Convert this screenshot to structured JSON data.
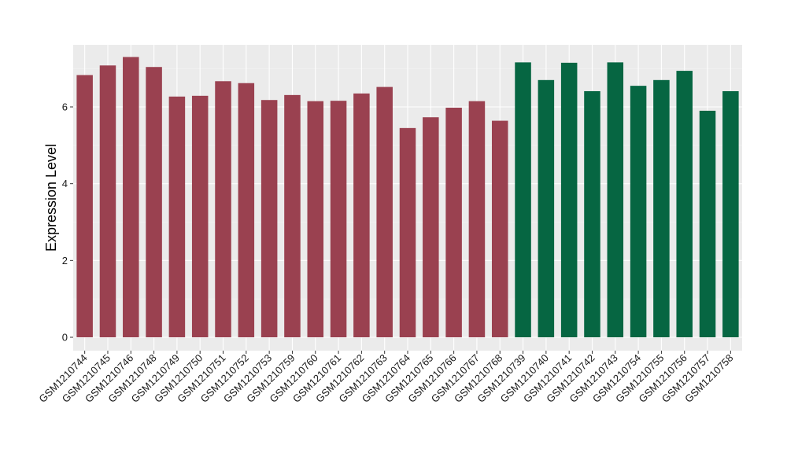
{
  "chart_data": {
    "type": "bar",
    "title": "",
    "xlabel": "",
    "ylabel": "Expression Level",
    "ylim": [
      0,
      7.6
    ],
    "yticks": [
      0,
      2,
      4,
      6
    ],
    "grid": true,
    "legend": "none",
    "categories": [
      "GSM1210744",
      "GSM1210745",
      "GSM1210746",
      "GSM1210748",
      "GSM1210749",
      "GSM1210750",
      "GSM1210751",
      "GSM1210752",
      "GSM1210753",
      "GSM1210759",
      "GSM1210760",
      "GSM1210761",
      "GSM1210762",
      "GSM1210763",
      "GSM1210764",
      "GSM1210765",
      "GSM1210766",
      "GSM1210767",
      "GSM1210768",
      "GSM1210739",
      "GSM1210740",
      "GSM1210741",
      "GSM1210742",
      "GSM1210743",
      "GSM1210754",
      "GSM1210755",
      "GSM1210756",
      "GSM1210757",
      "GSM1210758"
    ],
    "values": [
      6.83,
      7.08,
      7.3,
      7.04,
      6.27,
      6.29,
      6.67,
      6.62,
      6.18,
      6.31,
      6.15,
      6.16,
      6.35,
      6.52,
      5.45,
      5.73,
      5.98,
      6.15,
      5.64,
      7.16,
      6.7,
      7.15,
      6.41,
      7.16,
      6.55,
      6.7,
      6.94,
      5.9,
      6.41
    ],
    "group_colors": [
      "#9a4150",
      "#066642"
    ],
    "bar_group": [
      0,
      0,
      0,
      0,
      0,
      0,
      0,
      0,
      0,
      0,
      0,
      0,
      0,
      0,
      0,
      0,
      0,
      0,
      0,
      1,
      1,
      1,
      1,
      1,
      1,
      1,
      1,
      1,
      1
    ]
  },
  "colors": {
    "panel_background": "#ebebeb",
    "grid_major": "#ffffff",
    "grid_minor": "#f5f5f5",
    "tick_color": "#333333"
  }
}
